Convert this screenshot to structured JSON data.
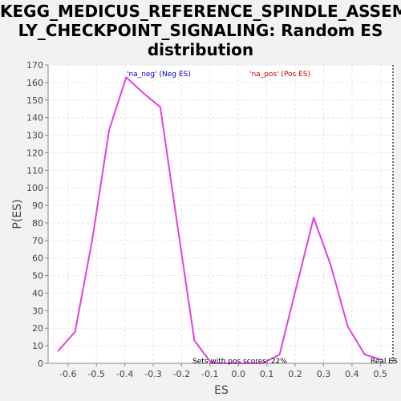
{
  "title_lines": [
    "KEGG_MEDICUS_REFERENCE_SPINDLE_ASSEMB",
    "LY_CHECKPOINT_SIGNALING: Random ES",
    "distribution"
  ],
  "chart_data": {
    "type": "line",
    "title": "KEGG_MEDICUS_REFERENCE_SPINDLE_ASSEMBLY_CHECKPOINT_SIGNALING: Random ES distribution",
    "xlabel": "ES",
    "ylabel": "P(ES)",
    "xlim": [
      -0.67,
      0.55
    ],
    "ylim": [
      0,
      170
    ],
    "xticks": [
      -0.6,
      -0.5,
      -0.4,
      -0.3,
      -0.2,
      -0.1,
      0.0,
      0.1,
      0.2,
      0.3,
      0.4,
      0.5
    ],
    "xtick_labels": [
      "-0.6",
      "-0.5",
      "-0.4",
      "-0.3",
      "-0.2",
      "-0.1",
      "0.0",
      "0.1",
      "0.2",
      "0.3",
      "0.4",
      "0.5"
    ],
    "yticks": [
      0,
      10,
      20,
      30,
      40,
      50,
      60,
      70,
      80,
      90,
      100,
      110,
      120,
      130,
      140,
      150,
      160,
      170
    ],
    "ytick_labels": [
      "0",
      "10",
      "20",
      "30",
      "40",
      "50",
      "60",
      "70",
      "80",
      "90",
      "100",
      "110",
      "120",
      "130",
      "140",
      "150",
      "160",
      "170"
    ],
    "grid": true,
    "series": [
      {
        "color": "#e040e0",
        "x": [
          -0.635,
          -0.575,
          -0.515,
          -0.455,
          -0.395,
          -0.335,
          -0.275,
          -0.215,
          -0.155,
          -0.095,
          -0.035,
          0.025,
          0.085,
          0.145,
          0.205,
          0.265,
          0.325,
          0.385,
          0.445,
          0.505
        ],
        "y": [
          7,
          18,
          70,
          133,
          163,
          154,
          146,
          79,
          13,
          0,
          0,
          0,
          0,
          5,
          44,
          83,
          56,
          21,
          5,
          2
        ]
      }
    ],
    "annotations": [
      {
        "text": "'na_neg' (Neg ES)",
        "color": "#0000cc"
      },
      {
        "text": "'na_pos' (Pos ES)",
        "color": "#cc0000"
      },
      {
        "text": "Sets with pos scores: 22%",
        "color": "#000000"
      },
      {
        "text": "Real ES",
        "color": "#000000"
      }
    ]
  }
}
